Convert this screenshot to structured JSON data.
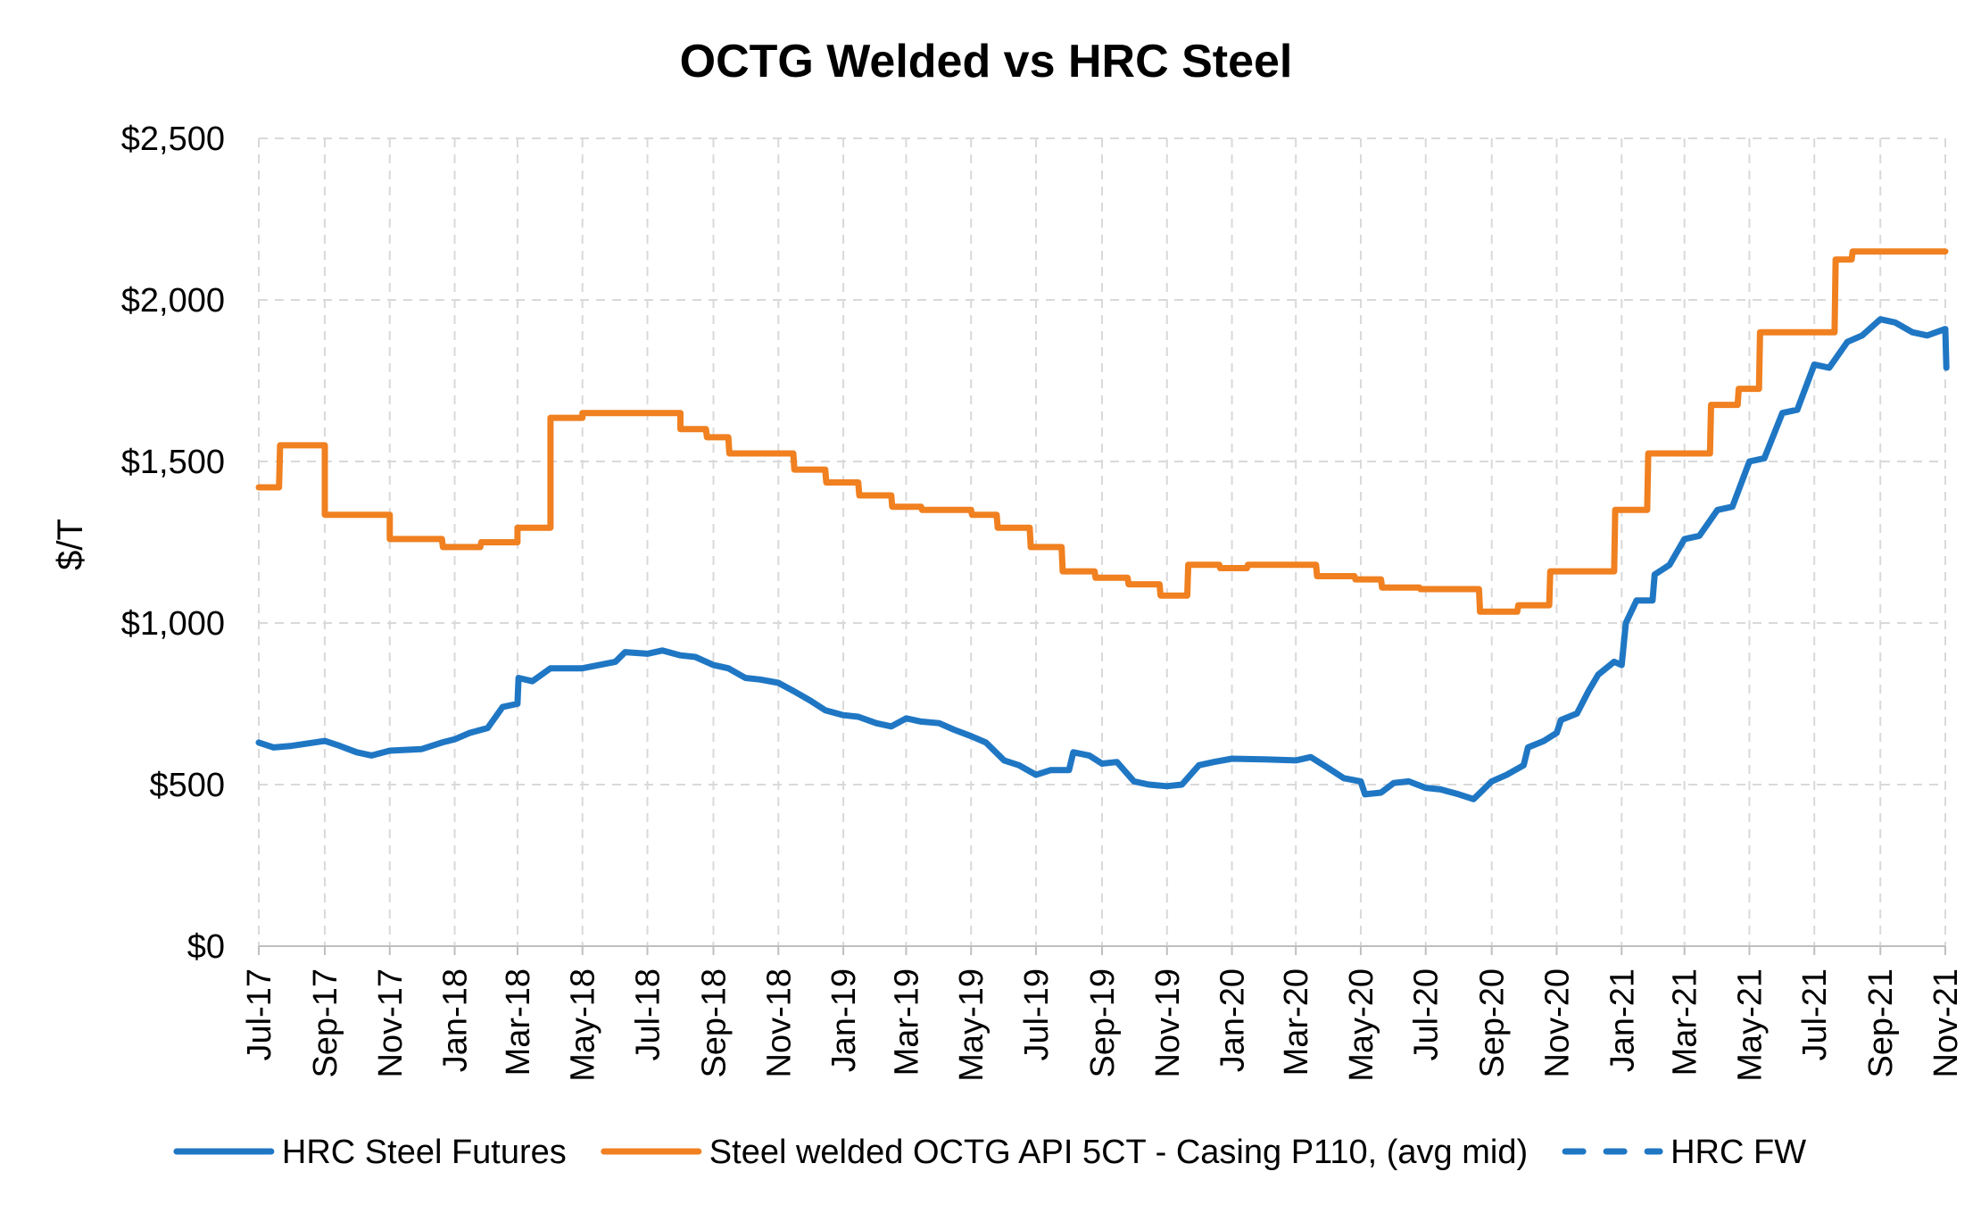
{
  "chart_data": {
    "type": "line",
    "title": "OCTG Welded vs HRC Steel",
    "ylabel": "$/T",
    "xlabel": "",
    "ylim": [
      0,
      2500
    ],
    "y_ticks": [
      0,
      500,
      1000,
      1500,
      2000,
      2500
    ],
    "y_tick_labels": [
      "$0",
      "$500",
      "$1,000",
      "$1,500",
      "$2,000",
      "$2,500"
    ],
    "x_range": [
      "2017-07",
      "2021-11"
    ],
    "x_tick_labels": [
      "Jul-17",
      "Sep-17",
      "Nov-17",
      "Jan-18",
      "Mar-18",
      "May-18",
      "Jul-18",
      "Sep-18",
      "Nov-18",
      "Jan-19",
      "Mar-19",
      "May-19",
      "Jul-19",
      "Sep-19",
      "Nov-19",
      "Jan-20",
      "Mar-20",
      "May-20",
      "Jul-20",
      "Sep-20",
      "Nov-20",
      "Jan-21",
      "Mar-21",
      "May-21",
      "Jul-21",
      "Sep-21",
      "Nov-21"
    ],
    "grid": true,
    "legend_position": "bottom",
    "series": [
      {
        "name": "HRC Steel Futures",
        "color": "#1f77c4",
        "style": "solid",
        "points": [
          [
            "2017-07",
            630
          ],
          [
            "2017-07-15",
            615
          ],
          [
            "2017-08",
            620
          ],
          [
            "2017-09",
            635
          ],
          [
            "2017-09-15",
            620
          ],
          [
            "2017-10",
            600
          ],
          [
            "2017-10-15",
            590
          ],
          [
            "2017-11",
            605
          ],
          [
            "2017-12",
            610
          ],
          [
            "2017-12-20",
            630
          ],
          [
            "2018-01",
            640
          ],
          [
            "2018-01-15",
            660
          ],
          [
            "2018-02",
            675
          ],
          [
            "2018-02-15",
            740
          ],
          [
            "2018-03",
            750
          ],
          [
            "2018-03-02",
            830
          ],
          [
            "2018-03-15",
            820
          ],
          [
            "2018-04",
            860
          ],
          [
            "2018-05",
            860
          ],
          [
            "2018-06",
            880
          ],
          [
            "2018-06-10",
            910
          ],
          [
            "2018-07",
            905
          ],
          [
            "2018-07-15",
            915
          ],
          [
            "2018-08",
            900
          ],
          [
            "2018-08-15",
            895
          ],
          [
            "2018-09",
            870
          ],
          [
            "2018-09-15",
            860
          ],
          [
            "2018-10",
            830
          ],
          [
            "2018-10-15",
            825
          ],
          [
            "2018-11",
            815
          ],
          [
            "2018-11-15",
            790
          ],
          [
            "2018-12",
            760
          ],
          [
            "2018-12-15",
            730
          ],
          [
            "2019-01",
            715
          ],
          [
            "2019-01-15",
            710
          ],
          [
            "2019-02",
            690
          ],
          [
            "2019-02-15",
            680
          ],
          [
            "2019-03",
            705
          ],
          [
            "2019-03-15",
            695
          ],
          [
            "2019-04",
            690
          ],
          [
            "2019-04-15",
            670
          ],
          [
            "2019-05",
            650
          ],
          [
            "2019-05-15",
            630
          ],
          [
            "2019-06",
            575
          ],
          [
            "2019-06-15",
            560
          ],
          [
            "2019-07",
            530
          ],
          [
            "2019-07-15",
            545
          ],
          [
            "2019-08",
            545
          ],
          [
            "2019-08-05",
            600
          ],
          [
            "2019-08-20",
            590
          ],
          [
            "2019-09",
            565
          ],
          [
            "2019-09-15",
            570
          ],
          [
            "2019-10",
            510
          ],
          [
            "2019-10-15",
            500
          ],
          [
            "2019-11",
            495
          ],
          [
            "2019-11-15",
            500
          ],
          [
            "2019-12",
            560
          ],
          [
            "2019-12-15",
            570
          ],
          [
            "2020-01",
            580
          ],
          [
            "2020-02",
            578
          ],
          [
            "2020-03",
            575
          ],
          [
            "2020-03-15",
            585
          ],
          [
            "2020-04",
            550
          ],
          [
            "2020-04-15",
            520
          ],
          [
            "2020-05",
            510
          ],
          [
            "2020-05-05",
            470
          ],
          [
            "2020-05-20",
            475
          ],
          [
            "2020-06",
            505
          ],
          [
            "2020-06-15",
            510
          ],
          [
            "2020-07",
            490
          ],
          [
            "2020-07-15",
            485
          ],
          [
            "2020-08",
            470
          ],
          [
            "2020-08-15",
            455
          ],
          [
            "2020-09",
            510
          ],
          [
            "2020-09-15",
            530
          ],
          [
            "2020-10",
            560
          ],
          [
            "2020-10-05",
            615
          ],
          [
            "2020-10-20",
            635
          ],
          [
            "2020-11",
            660
          ],
          [
            "2020-11-05",
            700
          ],
          [
            "2020-11-20",
            720
          ],
          [
            "2020-12",
            790
          ],
          [
            "2020-12-10",
            840
          ],
          [
            "2020-12-25",
            880
          ],
          [
            "2021-01",
            870
          ],
          [
            "2021-01-05",
            1000
          ],
          [
            "2021-01-15",
            1070
          ],
          [
            "2021-01-30",
            1070
          ],
          [
            "2021-02",
            1150
          ],
          [
            "2021-02-15",
            1180
          ],
          [
            "2021-03",
            1260
          ],
          [
            "2021-03-15",
            1270
          ],
          [
            "2021-04",
            1350
          ],
          [
            "2021-04-15",
            1360
          ],
          [
            "2021-05",
            1500
          ],
          [
            "2021-05-15",
            1510
          ],
          [
            "2021-06",
            1650
          ],
          [
            "2021-06-15",
            1660
          ],
          [
            "2021-07",
            1800
          ],
          [
            "2021-07-15",
            1790
          ],
          [
            "2021-08",
            1870
          ],
          [
            "2021-08-15",
            1890
          ],
          [
            "2021-09",
            1940
          ],
          [
            "2021-09-15",
            1930
          ],
          [
            "2021-10",
            1900
          ],
          [
            "2021-10-15",
            1890
          ],
          [
            "2021-11",
            1910
          ],
          [
            "2021-11-02",
            1790
          ]
        ]
      },
      {
        "name": "Steel welded OCTG API 5CT - Casing P110, (avg mid)",
        "color": "#f08020",
        "style": "solid",
        "points": [
          [
            "2017-07",
            1420
          ],
          [
            "2017-07-20",
            1420
          ],
          [
            "2017-07-21",
            1550
          ],
          [
            "2017-09",
            1550
          ],
          [
            "2017-09-01",
            1335
          ],
          [
            "2017-11",
            1335
          ],
          [
            "2017-11-01",
            1260
          ],
          [
            "2017-12-20",
            1260
          ],
          [
            "2017-12-21",
            1235
          ],
          [
            "2018-01-25",
            1235
          ],
          [
            "2018-01-26",
            1250
          ],
          [
            "2018-03",
            1250
          ],
          [
            "2018-03-01",
            1295
          ],
          [
            "2018-04",
            1295
          ],
          [
            "2018-04-01",
            1635
          ],
          [
            "2018-05",
            1635
          ],
          [
            "2018-05-01",
            1650
          ],
          [
            "2018-08",
            1650
          ],
          [
            "2018-08-01",
            1600
          ],
          [
            "2018-08-25",
            1600
          ],
          [
            "2018-08-26",
            1575
          ],
          [
            "2018-09-15",
            1575
          ],
          [
            "2018-09-16",
            1525
          ],
          [
            "2018-11-15",
            1525
          ],
          [
            "2018-11-16",
            1475
          ],
          [
            "2018-12-15",
            1475
          ],
          [
            "2018-12-16",
            1435
          ],
          [
            "2019-01-15",
            1435
          ],
          [
            "2019-01-16",
            1395
          ],
          [
            "2019-02-15",
            1395
          ],
          [
            "2019-02-16",
            1360
          ],
          [
            "2019-03-15",
            1360
          ],
          [
            "2019-03-16",
            1350
          ],
          [
            "2019-05-01",
            1350
          ],
          [
            "2019-05-02",
            1335
          ],
          [
            "2019-05-25",
            1335
          ],
          [
            "2019-05-26",
            1295
          ],
          [
            "2019-06-25",
            1295
          ],
          [
            "2019-06-26",
            1235
          ],
          [
            "2019-07-25",
            1235
          ],
          [
            "2019-07-26",
            1160
          ],
          [
            "2019-08-25",
            1160
          ],
          [
            "2019-08-26",
            1140
          ],
          [
            "2019-09-25",
            1140
          ],
          [
            "2019-09-26",
            1120
          ],
          [
            "2019-10-25",
            1120
          ],
          [
            "2019-10-26",
            1085
          ],
          [
            "2019-11-20",
            1085
          ],
          [
            "2019-11-21",
            1180
          ],
          [
            "2019-12-20",
            1180
          ],
          [
            "2019-12-21",
            1170
          ],
          [
            "2020-01-15",
            1170
          ],
          [
            "2020-01-16",
            1180
          ],
          [
            "2020-03-20",
            1180
          ],
          [
            "2020-03-21",
            1145
          ],
          [
            "2020-04-25",
            1145
          ],
          [
            "2020-04-26",
            1135
          ],
          [
            "2020-05-20",
            1135
          ],
          [
            "2020-05-21",
            1110
          ],
          [
            "2020-06-25",
            1110
          ],
          [
            "2020-06-26",
            1105
          ],
          [
            "2020-08-20",
            1105
          ],
          [
            "2020-08-21",
            1035
          ],
          [
            "2020-09-25",
            1035
          ],
          [
            "2020-09-26",
            1055
          ],
          [
            "2020-10-25",
            1055
          ],
          [
            "2020-10-26",
            1160
          ],
          [
            "2020-12-25",
            1160
          ],
          [
            "2020-12-26",
            1350
          ],
          [
            "2021-01-25",
            1350
          ],
          [
            "2021-01-26",
            1525
          ],
          [
            "2021-03-25",
            1525
          ],
          [
            "2021-03-26",
            1675
          ],
          [
            "2021-04-20",
            1675
          ],
          [
            "2021-04-21",
            1725
          ],
          [
            "2021-05-10",
            1725
          ],
          [
            "2021-05-11",
            1900
          ],
          [
            "2021-07-20",
            1900
          ],
          [
            "2021-07-21",
            2125
          ],
          [
            "2021-08-05",
            2125
          ],
          [
            "2021-08-06",
            2150
          ],
          [
            "2021-11-01",
            2150
          ]
        ]
      },
      {
        "name": "HRC FW",
        "color": "#1f77c4",
        "style": "dashed",
        "points": []
      }
    ]
  }
}
